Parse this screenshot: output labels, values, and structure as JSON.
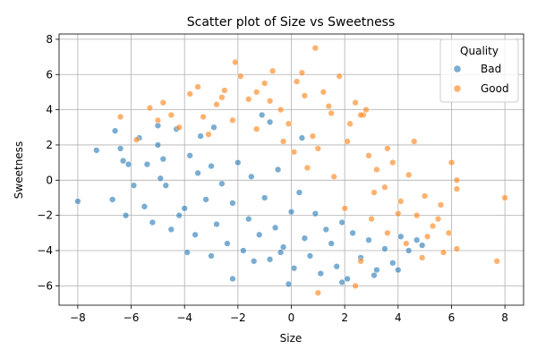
{
  "chart_data": {
    "type": "scatter",
    "title": "Scatter plot of Size vs Sweetness",
    "xlabel": "Size",
    "ylabel": "Sweetness",
    "xlim": [
      -8.7,
      8.7
    ],
    "ylim": [
      -7.1,
      8.3
    ],
    "xticks": [
      -8,
      -6,
      -4,
      -2,
      0,
      2,
      4,
      6,
      8
    ],
    "yticks": [
      -6,
      -4,
      -2,
      0,
      2,
      4,
      6,
      8
    ],
    "grid": true,
    "legend": {
      "title": "Quality",
      "placement": "top-right"
    },
    "series": [
      {
        "name": "Bad",
        "color": "#1f77b4",
        "points": [
          [
            -8.0,
            -1.2
          ],
          [
            -7.3,
            1.7
          ],
          [
            -6.6,
            2.8
          ],
          [
            -6.7,
            -1.1
          ],
          [
            -6.4,
            1.8
          ],
          [
            -6.3,
            1.1
          ],
          [
            -6.1,
            0.9
          ],
          [
            -5.7,
            2.4
          ],
          [
            -5.5,
            -1.5
          ],
          [
            -5.2,
            -2.4
          ],
          [
            -5.0,
            2.0
          ],
          [
            -4.8,
            1.2
          ],
          [
            -4.7,
            -0.3
          ],
          [
            -4.5,
            -2.8
          ],
          [
            -4.2,
            -2.0
          ],
          [
            -4.0,
            -1.6
          ],
          [
            -3.8,
            1.4
          ],
          [
            -3.6,
            -3.1
          ],
          [
            -3.5,
            0.4
          ],
          [
            -3.2,
            -1.1
          ],
          [
            -3.0,
            0.8
          ],
          [
            -2.8,
            -2.5
          ],
          [
            -2.6,
            -0.2
          ],
          [
            -2.4,
            -3.6
          ],
          [
            -2.2,
            -1.3
          ],
          [
            -2.0,
            1.0
          ],
          [
            -1.8,
            -4.0
          ],
          [
            -1.6,
            -2.2
          ],
          [
            -1.5,
            0.2
          ],
          [
            -1.2,
            -3.1
          ],
          [
            -1.0,
            -1.0
          ],
          [
            -0.8,
            -4.5
          ],
          [
            -0.6,
            -2.7
          ],
          [
            -0.5,
            0.6
          ],
          [
            -0.3,
            -3.8
          ],
          [
            0.0,
            -1.8
          ],
          [
            0.1,
            -5.0
          ],
          [
            0.3,
            -0.7
          ],
          [
            0.5,
            -3.3
          ],
          [
            0.7,
            -4.3
          ],
          [
            0.9,
            -1.9
          ],
          [
            1.1,
            -5.3
          ],
          [
            1.3,
            -2.8
          ],
          [
            1.5,
            -3.6
          ],
          [
            1.7,
            -4.9
          ],
          [
            1.9,
            -2.4
          ],
          [
            2.1,
            -5.6
          ],
          [
            2.3,
            -3.0
          ],
          [
            2.6,
            -4.4
          ],
          [
            2.9,
            -3.4
          ],
          [
            3.2,
            -5.1
          ],
          [
            3.5,
            -3.9
          ],
          [
            3.8,
            -4.7
          ],
          [
            4.1,
            -3.2
          ],
          [
            4.4,
            -4.0
          ],
          [
            4.7,
            -3.4
          ],
          [
            -0.1,
            -5.9
          ],
          [
            1.9,
            -5.8
          ],
          [
            -2.2,
            -5.6
          ],
          [
            -1.4,
            -4.6
          ],
          [
            -4.9,
            0.1
          ],
          [
            -5.9,
            -0.3
          ],
          [
            -5.4,
            0.9
          ],
          [
            -6.2,
            -2.0
          ],
          [
            -3.9,
            -4.1
          ],
          [
            -3.0,
            -4.3
          ],
          [
            -0.4,
            -4.1
          ],
          [
            3.1,
            -5.4
          ],
          [
            4.0,
            -5.1
          ],
          [
            4.9,
            -3.7
          ],
          [
            -1.1,
            3.7
          ],
          [
            -0.8,
            3.3
          ],
          [
            -3.4,
            2.5
          ],
          [
            -2.9,
            3.0
          ],
          [
            -4.3,
            2.9
          ],
          [
            -5.0,
            3.1
          ],
          [
            0.4,
            2.4
          ]
        ]
      },
      {
        "name": "Good",
        "color": "#ff7f0e",
        "points": [
          [
            -6.4,
            3.6
          ],
          [
            -5.8,
            2.3
          ],
          [
            -5.3,
            4.1
          ],
          [
            -4.8,
            4.4
          ],
          [
            -4.2,
            3.0
          ],
          [
            -3.8,
            4.9
          ],
          [
            -3.5,
            5.3
          ],
          [
            -3.1,
            2.6
          ],
          [
            -2.8,
            4.3
          ],
          [
            -2.5,
            5.1
          ],
          [
            -2.2,
            3.4
          ],
          [
            -1.9,
            5.9
          ],
          [
            -1.6,
            4.6
          ],
          [
            -1.3,
            2.9
          ],
          [
            -1.0,
            5.5
          ],
          [
            -0.7,
            6.2
          ],
          [
            -0.4,
            4.0
          ],
          [
            -0.1,
            3.2
          ],
          [
            0.2,
            5.6
          ],
          [
            0.5,
            4.8
          ],
          [
            0.8,
            2.5
          ],
          [
            0.9,
            7.5
          ],
          [
            1.2,
            5.0
          ],
          [
            1.5,
            3.8
          ],
          [
            1.8,
            5.9
          ],
          [
            2.1,
            2.2
          ],
          [
            2.4,
            4.4
          ],
          [
            2.7,
            3.7
          ],
          [
            2.9,
            1.4
          ],
          [
            3.2,
            0.6
          ],
          [
            3.5,
            -0.4
          ],
          [
            3.8,
            1.0
          ],
          [
            4.1,
            -1.2
          ],
          [
            4.4,
            0.3
          ],
          [
            4.7,
            -2.0
          ],
          [
            5.0,
            -0.9
          ],
          [
            5.3,
            -2.6
          ],
          [
            5.6,
            -1.4
          ],
          [
            5.9,
            -3.0
          ],
          [
            6.2,
            -0.5
          ],
          [
            6.2,
            -3.9
          ],
          [
            6.0,
            1.0
          ],
          [
            5.7,
            -4.1
          ],
          [
            4.9,
            -4.4
          ],
          [
            4.3,
            -3.6
          ],
          [
            3.6,
            -3.0
          ],
          [
            3.0,
            -2.2
          ],
          [
            2.6,
            -4.6
          ],
          [
            2.4,
            -6.0
          ],
          [
            1.0,
            -6.4
          ],
          [
            2.0,
            -1.6
          ],
          [
            1.6,
            0.2
          ],
          [
            1.0,
            1.8
          ],
          [
            0.6,
            0.7
          ],
          [
            0.1,
            1.6
          ],
          [
            -0.3,
            2.2
          ],
          [
            7.7,
            -4.6
          ],
          [
            8.0,
            -1.0
          ],
          [
            6.2,
            0.0
          ],
          [
            5.5,
            -2.2
          ],
          [
            4.6,
            2.2
          ],
          [
            3.6,
            1.8
          ],
          [
            2.8,
            4.0
          ],
          [
            2.6,
            3.7
          ],
          [
            -2.1,
            6.7
          ],
          [
            -2.6,
            4.7
          ],
          [
            -4.5,
            3.7
          ],
          [
            -5.0,
            3.4
          ],
          [
            -3.3,
            3.6
          ],
          [
            -0.8,
            4.5
          ],
          [
            1.4,
            4.2
          ],
          [
            2.2,
            3.2
          ],
          [
            3.1,
            -0.7
          ],
          [
            4.0,
            -1.9
          ],
          [
            5.1,
            -3.2
          ],
          [
            0.4,
            6.1
          ],
          [
            -1.3,
            5.0
          ]
        ]
      }
    ]
  }
}
